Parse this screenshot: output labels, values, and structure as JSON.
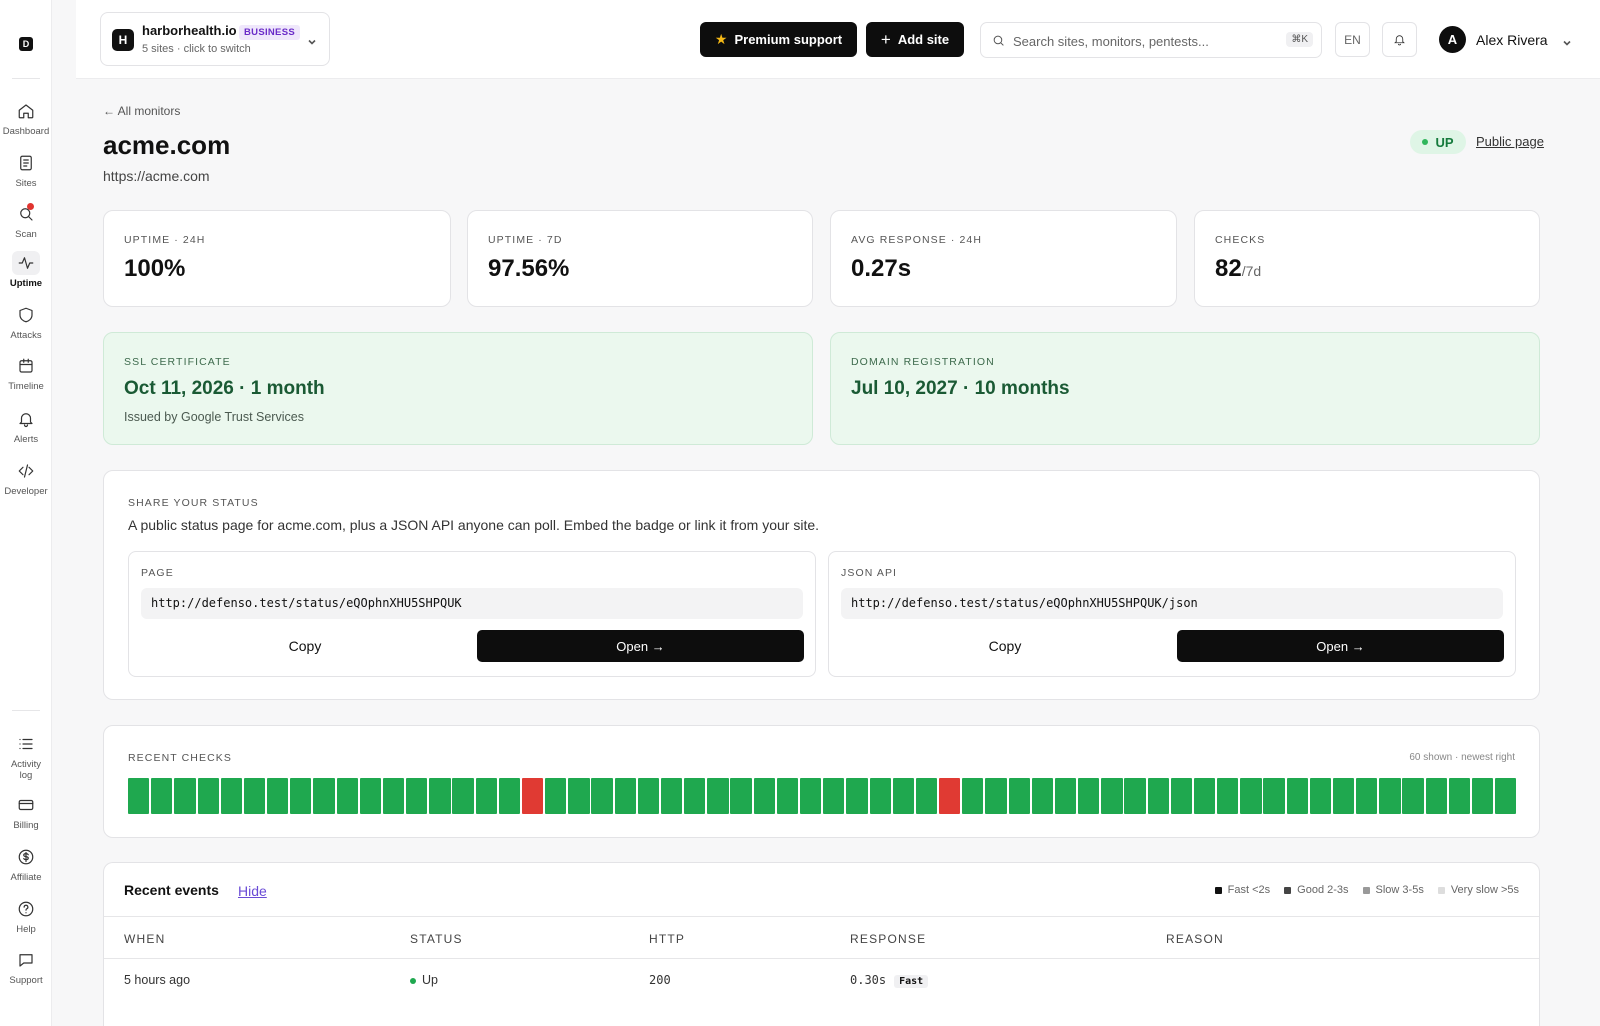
{
  "sidebar": {
    "logo": "D",
    "items": [
      {
        "label": "Dashboard",
        "icon": "home-icon"
      },
      {
        "label": "Sites",
        "icon": "document-icon"
      },
      {
        "label": "Scan",
        "icon": "search-icon"
      },
      {
        "label": "Uptime",
        "icon": "pulse-icon"
      },
      {
        "label": "Attacks",
        "icon": "shield-icon"
      },
      {
        "label": "Timeline",
        "icon": "calendar-icon"
      },
      {
        "label": "Alerts",
        "icon": "bell-icon"
      },
      {
        "label": "Developer",
        "icon": "code-icon"
      }
    ],
    "bottom_items": [
      {
        "label": "Activity log",
        "icon": "list-icon"
      },
      {
        "label": "Billing",
        "icon": "card-icon"
      },
      {
        "label": "Affiliate",
        "icon": "dollar-icon"
      },
      {
        "label": "Help",
        "icon": "help-icon"
      },
      {
        "label": "Support",
        "icon": "chat-icon"
      }
    ]
  },
  "header": {
    "site_initial": "H",
    "site_name": "harborhealth.io",
    "plan": "BUSINESS",
    "site_sub": "5 sites · click to switch",
    "premium_label": "Premium support",
    "add_site_label": "Add site",
    "search_placeholder": "Search sites, monitors, pentests...",
    "search_shortcut": "⌘K",
    "language": "EN",
    "user_initial": "A",
    "user_name": "Alex Rivera"
  },
  "monitor": {
    "back_label": "← All monitors",
    "title": "acme.com",
    "url": "https://acme.com",
    "status": "UP",
    "public_link": "Public page"
  },
  "stats": [
    {
      "label": "UPTIME · 24H",
      "value": "100%",
      "suffix": ""
    },
    {
      "label": "UPTIME · 7D",
      "value": "97.56%",
      "suffix": ""
    },
    {
      "label": "AVG RESPONSE · 24H",
      "value": "0.27s",
      "suffix": ""
    },
    {
      "label": "CHECKS",
      "value": "82",
      "suffix": "/7d"
    }
  ],
  "ssl": {
    "label": "SSL CERTIFICATE",
    "value": "Oct 11, 2026 · 1 month",
    "sub": "Issued by Google Trust Services"
  },
  "domain": {
    "label": "DOMAIN REGISTRATION",
    "value": "Jul 10, 2027 · 10 months"
  },
  "share": {
    "label": "SHARE YOUR STATUS",
    "description": "A public status page for acme.com, plus a JSON API anyone can poll. Embed the badge or link it from your site.",
    "page": {
      "label": "PAGE",
      "url": "http://defenso.test/status/eQOphnXHU5SHPQUK",
      "copy_label": "Copy",
      "open_label": "Open →"
    },
    "api": {
      "label": "JSON API",
      "url": "http://defenso.test/status/eQOphnXHU5SHPQUK/json",
      "copy_label": "Copy",
      "open_label": "Open →"
    }
  },
  "recent_checks": {
    "label": "RECENT CHECKS",
    "note": "60 shown · newest right",
    "colors": {
      "up": "#1fa84f",
      "down": "#e03a33"
    },
    "checks": [
      "up",
      "up",
      "up",
      "up",
      "up",
      "up",
      "up",
      "up",
      "up",
      "up",
      "up",
      "up",
      "up",
      "up",
      "up",
      "up",
      "up",
      "down",
      "up",
      "up",
      "up",
      "up",
      "up",
      "up",
      "up",
      "up",
      "up",
      "up",
      "up",
      "up",
      "up",
      "up",
      "up",
      "up",
      "up",
      "down",
      "up",
      "up",
      "up",
      "up",
      "up",
      "up",
      "up",
      "up",
      "up",
      "up",
      "up",
      "up",
      "up",
      "up",
      "up",
      "up",
      "up",
      "up",
      "up",
      "up",
      "up",
      "up",
      "up",
      "up"
    ]
  },
  "events": {
    "title": "Recent events",
    "hide_label": "Hide",
    "legend": [
      {
        "label": "Fast <2s",
        "color": "#111111"
      },
      {
        "label": "Good 2-3s",
        "color": "#444444"
      },
      {
        "label": "Slow 3-5s",
        "color": "#999999"
      },
      {
        "label": "Very slow >5s",
        "color": "#dddddd"
      }
    ],
    "columns": [
      "WHEN",
      "STATUS",
      "HTTP",
      "RESPONSE",
      "REASON"
    ],
    "rows": [
      {
        "when": "5 hours ago",
        "status": "Up",
        "http": "200",
        "response": "0.30s",
        "speed": "Fast",
        "reason": ""
      }
    ]
  }
}
